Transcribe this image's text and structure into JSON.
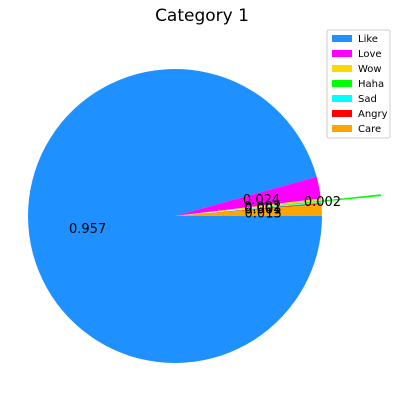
{
  "chart_data": {
    "type": "pie",
    "title": "Category 1",
    "labels": [
      "Like",
      "Love",
      "Wow",
      "Haha",
      "Sad",
      "Angry",
      "Care"
    ],
    "values": [
      0.957,
      0.024,
      0.002,
      0.002,
      0.001,
      0.001,
      0.013
    ],
    "value_labels": [
      "0.957",
      "0.024",
      "0.002",
      "0.002",
      "0.001",
      "0.001",
      "0.013"
    ],
    "colors": [
      "#1E90FF",
      "#FF00FF",
      "#FFD700",
      "#00FF00",
      "#00FFFF",
      "#FF0000",
      "#FFA500"
    ],
    "legend_placement": "top-right",
    "exploded": [
      "Haha"
    ]
  }
}
